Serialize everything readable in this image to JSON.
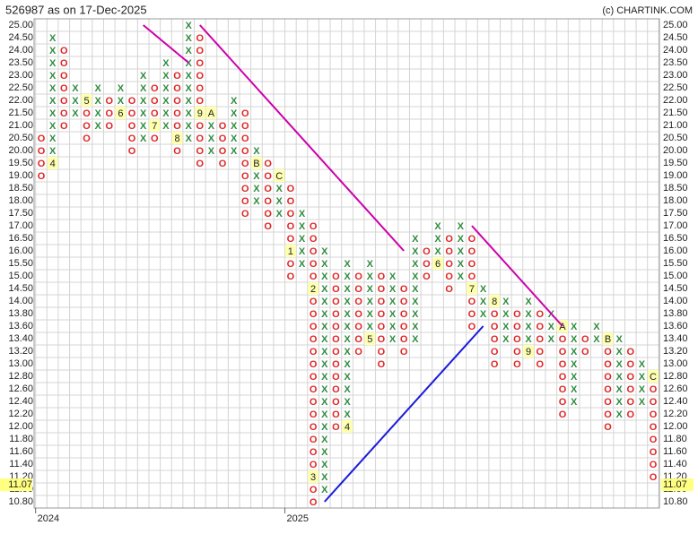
{
  "chart_data": {
    "type": "pnf",
    "title": "526987 as on 17-Dec-2025",
    "credit": "(c) CHARTINK.COM",
    "x_color": "#2e8b3e",
    "o_color": "#e02424",
    "grid": true,
    "levels": [
      {
        "value": 25,
        "label": "25.00"
      },
      {
        "value": 24.5,
        "label": "24.50"
      },
      {
        "value": 24,
        "label": "24.00"
      },
      {
        "value": 23.5,
        "label": "23.50"
      },
      {
        "value": 23,
        "label": "23.00"
      },
      {
        "value": 22.5,
        "label": "22.50"
      },
      {
        "value": 22,
        "label": "22.00"
      },
      {
        "value": 21.5,
        "label": "21.50"
      },
      {
        "value": 21,
        "label": "21.00"
      },
      {
        "value": 20.5,
        "label": "20.50"
      },
      {
        "value": 20,
        "label": "20.00"
      },
      {
        "value": 19.5,
        "label": "19.50"
      },
      {
        "value": 19,
        "label": "19.00"
      },
      {
        "value": 18.5,
        "label": "18.50"
      },
      {
        "value": 18,
        "label": "18.00"
      },
      {
        "value": 17.5,
        "label": "17.50"
      },
      {
        "value": 17,
        "label": "17.00"
      },
      {
        "value": 16.5,
        "label": "16.50"
      },
      {
        "value": 16,
        "label": "16.00"
      },
      {
        "value": 15.5,
        "label": "15.50"
      },
      {
        "value": 15,
        "label": "15.00"
      },
      {
        "value": 14.5,
        "label": "14.50"
      },
      {
        "value": 14,
        "label": "14.00"
      },
      {
        "value": 13.8,
        "label": "13.80"
      },
      {
        "value": 13.6,
        "label": "13.60"
      },
      {
        "value": 13.4,
        "label": "13.40"
      },
      {
        "value": 13.2,
        "label": "13.20"
      },
      {
        "value": 13,
        "label": "13.00"
      },
      {
        "value": 12.8,
        "label": "12.80"
      },
      {
        "value": 12.6,
        "label": "12.60"
      },
      {
        "value": 12.4,
        "label": "12.40"
      },
      {
        "value": 12.2,
        "label": "12.20"
      },
      {
        "value": 12,
        "label": "12.00"
      },
      {
        "value": 11.8,
        "label": "11.80"
      },
      {
        "value": 11.6,
        "label": "11.60"
      },
      {
        "value": 11.4,
        "label": "11.40"
      },
      {
        "value": 11.2,
        "label": "11.20"
      },
      {
        "value": 11,
        "label": "11.00"
      },
      {
        "value": 10.8,
        "label": "10.80"
      }
    ],
    "last_price": {
      "value": 11.07,
      "label": "11.07"
    },
    "years": [
      {
        "label": "2024",
        "col": 0
      },
      {
        "label": "2025",
        "col": 22
      }
    ],
    "columns": [
      {
        "box": "O",
        "top": 20.5,
        "bottom": 19
      },
      {
        "box": "X",
        "top": 24.5,
        "bottom": 19.5,
        "months": [
          {
            "at": 19.5,
            "label": "4"
          }
        ]
      },
      {
        "box": "O",
        "top": 24,
        "bottom": 21
      },
      {
        "box": "X",
        "top": 22.5,
        "bottom": 21.5
      },
      {
        "box": "O",
        "top": 22,
        "bottom": 20.5,
        "months": [
          {
            "at": 22,
            "label": "5"
          }
        ]
      },
      {
        "box": "X",
        "top": 22.5,
        "bottom": 21
      },
      {
        "box": "O",
        "top": 22,
        "bottom": 21
      },
      {
        "box": "X",
        "top": 22.5,
        "bottom": 21.5,
        "months": [
          {
            "at": 21.5,
            "label": "6"
          }
        ]
      },
      {
        "box": "O",
        "top": 22,
        "bottom": 20
      },
      {
        "box": "X",
        "top": 23,
        "bottom": 20.5
      },
      {
        "box": "O",
        "top": 22.5,
        "bottom": 20.5,
        "months": [
          {
            "at": 21,
            "label": "7"
          }
        ]
      },
      {
        "box": "X",
        "top": 23.5,
        "bottom": 21
      },
      {
        "box": "O",
        "top": 23,
        "bottom": 20,
        "months": [
          {
            "at": 20.5,
            "label": "8"
          }
        ]
      },
      {
        "box": "X",
        "top": 25,
        "bottom": 20.5
      },
      {
        "box": "O",
        "top": 24.5,
        "bottom": 19.5,
        "months": [
          {
            "at": 21.5,
            "label": "9"
          }
        ]
      },
      {
        "box": "X",
        "top": 21.5,
        "bottom": 20,
        "months": [
          {
            "at": 21.5,
            "label": "A"
          }
        ]
      },
      {
        "box": "O",
        "top": 21,
        "bottom": 19.5
      },
      {
        "box": "X",
        "top": 22,
        "bottom": 20
      },
      {
        "box": "O",
        "top": 21.5,
        "bottom": 17.5
      },
      {
        "box": "X",
        "top": 20,
        "bottom": 18,
        "months": [
          {
            "at": 19.5,
            "label": "B"
          }
        ]
      },
      {
        "box": "O",
        "top": 19.5,
        "bottom": 17
      },
      {
        "box": "X",
        "top": 19,
        "bottom": 17.5,
        "months": [
          {
            "at": 19,
            "label": "C"
          }
        ]
      },
      {
        "box": "O",
        "top": 18.5,
        "bottom": 15,
        "months": [
          {
            "at": 16,
            "label": "1"
          }
        ]
      },
      {
        "box": "X",
        "top": 17.5,
        "bottom": 15.5
      },
      {
        "box": "O",
        "top": 17,
        "bottom": 10.8,
        "months": [
          {
            "at": 14.5,
            "label": "2"
          },
          {
            "at": 11.2,
            "label": "3"
          }
        ]
      },
      {
        "box": "X",
        "top": 16,
        "bottom": 11
      },
      {
        "box": "O",
        "top": 15,
        "bottom": 12
      },
      {
        "box": "X",
        "top": 15.5,
        "bottom": 12,
        "months": [
          {
            "at": 12,
            "label": "4"
          }
        ]
      },
      {
        "box": "O",
        "top": 15,
        "bottom": 13.2
      },
      {
        "box": "X",
        "top": 15.5,
        "bottom": 13.4,
        "months": [
          {
            "at": 13.4,
            "label": "5"
          }
        ]
      },
      {
        "box": "O",
        "top": 15,
        "bottom": 13
      },
      {
        "box": "X",
        "top": 15,
        "bottom": 13.4
      },
      {
        "box": "O",
        "top": 14.5,
        "bottom": 13.2
      },
      {
        "box": "X",
        "top": 16.5,
        "bottom": 13.4
      },
      {
        "box": "O",
        "top": 16,
        "bottom": 15
      },
      {
        "box": "X",
        "top": 17,
        "bottom": 15.5,
        "months": [
          {
            "at": 15.5,
            "label": "6"
          }
        ]
      },
      {
        "box": "O",
        "top": 16.5,
        "bottom": 14.5
      },
      {
        "box": "X",
        "top": 17,
        "bottom": 15
      },
      {
        "box": "O",
        "top": 16.5,
        "bottom": 13.6,
        "months": [
          {
            "at": 14.5,
            "label": "7"
          }
        ]
      },
      {
        "box": "X",
        "top": 14.5,
        "bottom": 13.8
      },
      {
        "box": "O",
        "top": 14,
        "bottom": 13,
        "months": [
          {
            "at": 14,
            "label": "8"
          }
        ]
      },
      {
        "box": "X",
        "top": 14,
        "bottom": 13.4
      },
      {
        "box": "O",
        "top": 13.8,
        "bottom": 13
      },
      {
        "box": "X",
        "top": 14,
        "bottom": 13.2,
        "months": [
          {
            "at": 13.2,
            "label": "9"
          }
        ]
      },
      {
        "box": "O",
        "top": 13.8,
        "bottom": 13
      },
      {
        "box": "X",
        "top": 13.8,
        "bottom": 13.4
      },
      {
        "box": "O",
        "top": 13.6,
        "bottom": 12.2,
        "months": [
          {
            "at": 13.6,
            "label": "A"
          }
        ]
      },
      {
        "box": "X",
        "top": 13.6,
        "bottom": 12.4
      },
      {
        "box": "O",
        "top": 13.4,
        "bottom": 13.2
      },
      {
        "box": "X",
        "top": 13.6,
        "bottom": 13.4
      },
      {
        "box": "O",
        "top": 13.4,
        "bottom": 12,
        "months": [
          {
            "at": 13.4,
            "label": "B"
          }
        ]
      },
      {
        "box": "X",
        "top": 13.4,
        "bottom": 12.2
      },
      {
        "box": "O",
        "top": 13.2,
        "bottom": 12.2
      },
      {
        "box": "X",
        "top": 13,
        "bottom": 12.4
      },
      {
        "box": "O",
        "top": 12.8,
        "bottom": 11.2,
        "months": [
          {
            "at": 12.8,
            "label": "C"
          }
        ]
      }
    ],
    "trendlines": [
      {
        "color": "#cc00aa",
        "x": [
          9,
          13
        ],
        "y": [
          25,
          23.5
        ]
      },
      {
        "color": "#cc00aa",
        "x": [
          14,
          32
        ],
        "y": [
          25,
          16
        ]
      },
      {
        "color": "#cc00aa",
        "x": [
          38,
          46
        ],
        "y": [
          17,
          13.6
        ]
      },
      {
        "color": "#1a1adc",
        "x": [
          25,
          39
        ],
        "y": [
          10.8,
          13.6
        ]
      }
    ]
  }
}
